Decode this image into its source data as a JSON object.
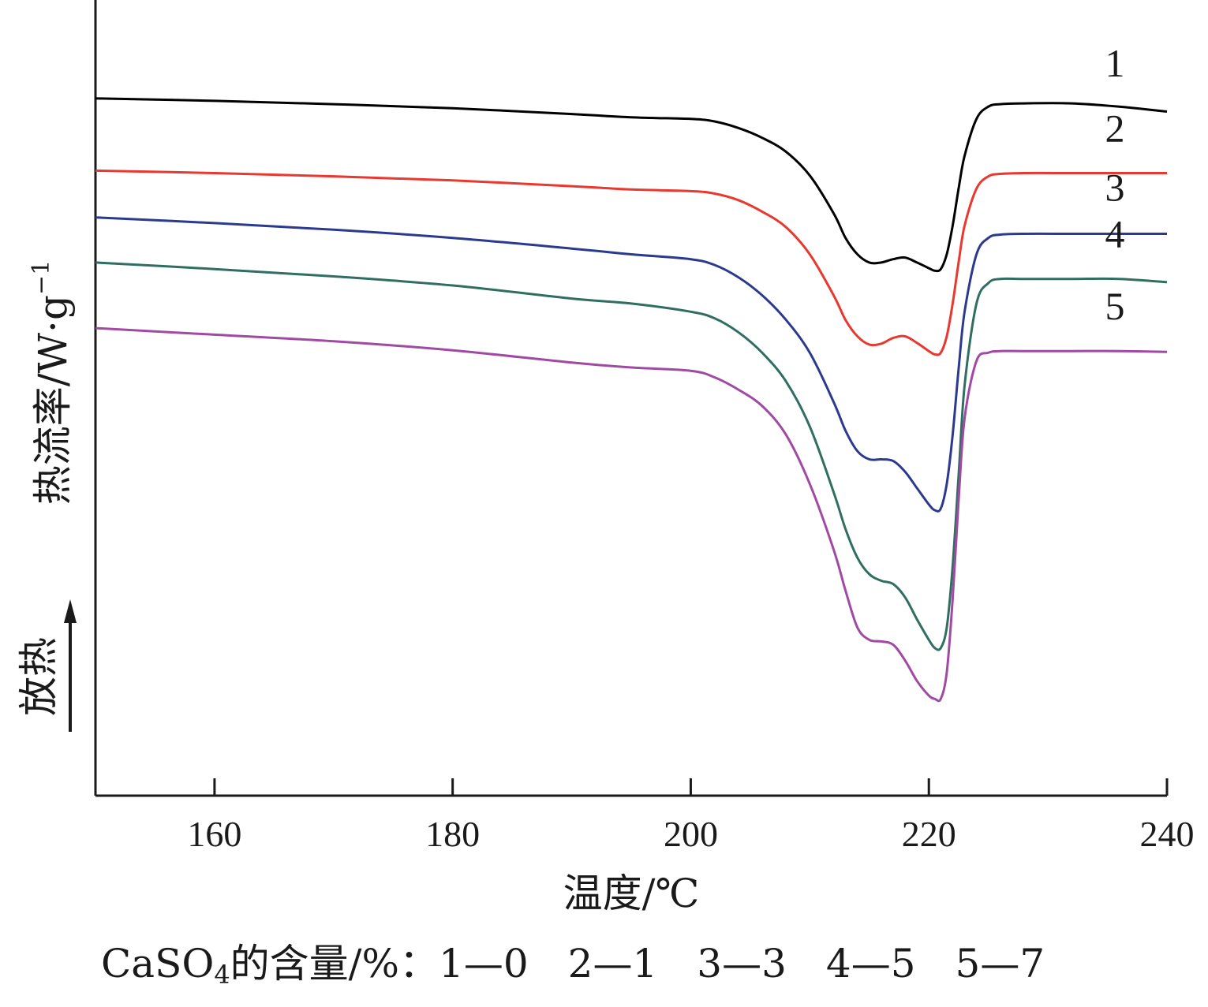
{
  "chart_data": {
    "type": "line",
    "xlabel": "温度/℃",
    "ylabel": "热流率/W·g",
    "ylabel_sup": "−1",
    "arrow_label": "放热",
    "xlim": [
      150,
      240
    ],
    "xticks": [
      160,
      180,
      200,
      220,
      240
    ],
    "grid": false,
    "legend": "none",
    "caption": {
      "prefix": "CaSO",
      "subscript": "4",
      "suffix": "的含量/%：1—0　2—1　3—3　4—5　5—7"
    },
    "series": [
      {
        "name": "1",
        "color": "#000000",
        "x": [
          150,
          160,
          170,
          180,
          190,
          195,
          200,
          202,
          204,
          206,
          208,
          210,
          212,
          213,
          214,
          215,
          216,
          217,
          218,
          219,
          220,
          220.5,
          221,
          221.5,
          222,
          222.5,
          223,
          224,
          225,
          226,
          228,
          232,
          236,
          240
        ],
        "y": [
          1.5,
          1.47,
          1.43,
          1.38,
          1.31,
          1.27,
          1.25,
          1.22,
          1.14,
          1.02,
          0.85,
          0.56,
          0.1,
          -0.2,
          -0.4,
          -0.5,
          -0.5,
          -0.46,
          -0.44,
          -0.5,
          -0.57,
          -0.6,
          -0.58,
          -0.4,
          -0.05,
          0.4,
          0.8,
          1.25,
          1.4,
          1.43,
          1.44,
          1.44,
          1.4,
          1.34
        ]
      },
      {
        "name": "2",
        "color": "#e8382f",
        "x": [
          150,
          160,
          170,
          180,
          190,
          195,
          200,
          202,
          204,
          206,
          208,
          210,
          212,
          213,
          214,
          215,
          216,
          217,
          218,
          219,
          220,
          220.5,
          221,
          221.5,
          222,
          222.5,
          223,
          224,
          225,
          226,
          228,
          232,
          236,
          240
        ],
        "y": [
          0.62,
          0.59,
          0.55,
          0.5,
          0.43,
          0.39,
          0.37,
          0.34,
          0.26,
          0.12,
          -0.07,
          -0.4,
          -0.9,
          -1.2,
          -1.4,
          -1.5,
          -1.49,
          -1.42,
          -1.4,
          -1.48,
          -1.58,
          -1.62,
          -1.6,
          -1.4,
          -1.0,
          -0.5,
          -0.05,
          0.4,
          0.55,
          0.58,
          0.59,
          0.59,
          0.59,
          0.59
        ]
      },
      {
        "name": "3",
        "color": "#2b3a8f",
        "x": [
          150,
          160,
          170,
          180,
          190,
          195,
          200,
          202,
          204,
          206,
          208,
          210,
          212,
          213,
          214,
          215,
          216,
          217,
          218,
          219,
          220,
          220.5,
          221,
          221.5,
          222,
          222.5,
          223,
          224,
          225,
          226,
          228,
          232,
          236,
          240
        ],
        "y": [
          0.05,
          -0.02,
          -0.1,
          -0.2,
          -0.33,
          -0.4,
          -0.46,
          -0.53,
          -0.68,
          -0.9,
          -1.2,
          -1.6,
          -2.2,
          -2.55,
          -2.8,
          -2.9,
          -2.9,
          -2.92,
          -3.05,
          -3.25,
          -3.45,
          -3.52,
          -3.5,
          -3.2,
          -2.6,
          -1.8,
          -1.1,
          -0.4,
          -0.2,
          -0.16,
          -0.15,
          -0.15,
          -0.15,
          -0.15
        ]
      },
      {
        "name": "4",
        "color": "#2f6e60",
        "x": [
          150,
          160,
          170,
          180,
          190,
          195,
          200,
          202,
          204,
          206,
          208,
          210,
          212,
          213,
          214,
          215,
          216,
          217,
          218,
          219,
          220,
          220.5,
          221,
          221.5,
          222,
          222.5,
          223,
          224,
          225,
          226,
          228,
          232,
          236,
          240
        ],
        "y": [
          -0.5,
          -0.58,
          -0.67,
          -0.78,
          -0.94,
          -1.0,
          -1.1,
          -1.18,
          -1.35,
          -1.6,
          -1.95,
          -2.5,
          -3.3,
          -3.75,
          -4.1,
          -4.3,
          -4.38,
          -4.42,
          -4.58,
          -4.85,
          -5.1,
          -5.2,
          -5.2,
          -4.95,
          -4.2,
          -3.1,
          -2.0,
          -1.0,
          -0.75,
          -0.7,
          -0.7,
          -0.7,
          -0.7,
          -0.74
        ]
      },
      {
        "name": "5",
        "color": "#a04aa4",
        "x": [
          150,
          160,
          170,
          180,
          190,
          195,
          200,
          202,
          204,
          206,
          208,
          210,
          212,
          213,
          214,
          215,
          216,
          217,
          218,
          219,
          220,
          220.5,
          221,
          221.5,
          222,
          222.5,
          223,
          224,
          225,
          226,
          228,
          232,
          236,
          240
        ],
        "y": [
          -1.3,
          -1.38,
          -1.46,
          -1.57,
          -1.72,
          -1.78,
          -1.82,
          -1.9,
          -2.05,
          -2.25,
          -2.6,
          -3.2,
          -4.0,
          -4.5,
          -4.95,
          -5.1,
          -5.12,
          -5.16,
          -5.35,
          -5.6,
          -5.78,
          -5.82,
          -5.82,
          -5.5,
          -4.6,
          -3.4,
          -2.4,
          -1.7,
          -1.6,
          -1.58,
          -1.58,
          -1.58,
          -1.58,
          -1.59
        ]
      }
    ]
  }
}
